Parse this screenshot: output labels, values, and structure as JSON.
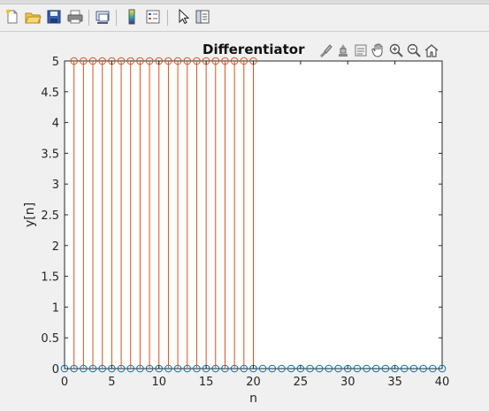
{
  "toolbar": {
    "buttons": [
      "new-figure-icon",
      "open-file-icon",
      "save-icon",
      "print-icon",
      "link-plot-icon",
      "colorbar-icon",
      "legend-icon",
      "pointer-icon",
      "property-editor-icon"
    ]
  },
  "chart_data": {
    "type": "stem",
    "title": "Differentiator",
    "xlabel": "n",
    "ylabel": "y[n]",
    "xlim": [
      0,
      40
    ],
    "ylim": [
      0,
      5
    ],
    "xticks": [
      "0",
      "5",
      "10",
      "15",
      "20",
      "25",
      "30",
      "35",
      "40"
    ],
    "yticks": [
      "0",
      "0.5",
      "1",
      "1.5",
      "2",
      "2.5",
      "3",
      "3.5",
      "4",
      "4.5",
      "5"
    ],
    "grid": false,
    "series": [
      {
        "color": "#0072bd",
        "x": [
          0,
          1,
          2,
          3,
          4,
          5,
          6,
          7,
          8,
          9,
          10,
          11,
          12,
          13,
          14,
          15,
          16,
          17,
          18,
          19,
          20,
          21,
          22,
          23,
          24,
          25,
          26,
          27,
          28,
          29,
          30,
          31,
          32,
          33,
          34,
          35,
          36,
          37,
          38,
          39,
          40
        ],
        "values": [
          0,
          0,
          0,
          0,
          0,
          0,
          0,
          0,
          0,
          0,
          0,
          0,
          0,
          0,
          0,
          0,
          0,
          0,
          0,
          0,
          0,
          0,
          0,
          0,
          0,
          0,
          0,
          0,
          0,
          0,
          0,
          0,
          0,
          0,
          0,
          0,
          0,
          0,
          0,
          0,
          0
        ]
      },
      {
        "color": "#d95319",
        "x": [
          1,
          2,
          3,
          4,
          5,
          6,
          7,
          8,
          9,
          10,
          11,
          12,
          13,
          14,
          15,
          16,
          17,
          18,
          19,
          20
        ],
        "values": [
          5,
          5,
          5,
          5,
          5,
          5,
          5,
          5,
          5,
          5,
          5,
          5,
          5,
          5,
          5,
          5,
          5,
          5,
          5,
          5
        ]
      }
    ]
  }
}
